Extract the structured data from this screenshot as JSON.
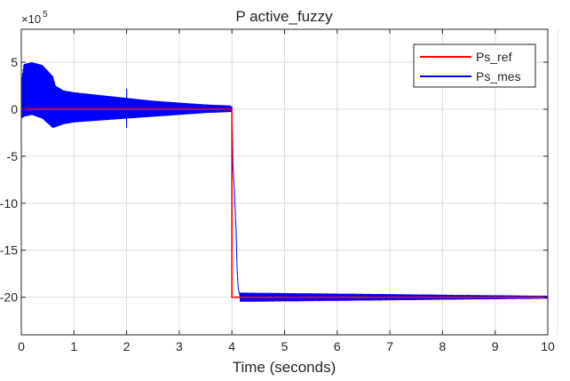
{
  "chart_data": {
    "type": "line",
    "title": "P active_fuzzy",
    "xlabel": "Time (seconds)",
    "ylabel": "",
    "y_exponent_label": "×10",
    "y_exponent_power": "5",
    "xlim": [
      0,
      10
    ],
    "ylim": [
      -24,
      8.5
    ],
    "xticks": [
      0,
      1,
      2,
      3,
      4,
      5,
      6,
      7,
      8,
      9,
      10
    ],
    "xtick_labels": [
      "0",
      "1",
      "2",
      "3",
      "4",
      "5",
      "6",
      "7",
      "8",
      "9",
      "10"
    ],
    "yticks": [
      5,
      0,
      -5,
      -10,
      -15,
      -20
    ],
    "ytick_labels": [
      "5",
      "0",
      "-5",
      "-10",
      "-15",
      "-20"
    ],
    "grid": true,
    "legend_position": "top-right",
    "series": [
      {
        "name": "Ps_ref",
        "color": "#ff0000",
        "x": [
          0,
          4.0,
          4.0,
          10
        ],
        "y": [
          0,
          0,
          -20,
          -20
        ]
      },
      {
        "name": "Ps_mes",
        "color": "#0000ff",
        "envelope": {
          "x": [
            0.0,
            0.05,
            0.2,
            0.4,
            0.6,
            0.65,
            0.8,
            1.0,
            1.5,
            2.0,
            2.5,
            3.0,
            3.5,
            3.95,
            4.0
          ],
          "upper": [
            3.0,
            4.8,
            5.0,
            4.7,
            3.5,
            2.5,
            2.0,
            1.8,
            1.5,
            1.2,
            0.9,
            0.7,
            0.5,
            0.4,
            0.3
          ],
          "lower": [
            -1.0,
            -0.8,
            -0.6,
            -1.0,
            -2.0,
            -1.9,
            -1.6,
            -1.4,
            -1.2,
            -1.0,
            -0.8,
            -0.6,
            -0.4,
            -0.3,
            -0.3
          ]
        },
        "spikes": [
          {
            "x": 2.0,
            "y": [
              -2.0,
              2.2
            ]
          }
        ],
        "transition": {
          "x": [
            4.0,
            4.02,
            4.05,
            4.08,
            4.1,
            4.12,
            4.15
          ],
          "y": [
            0.2,
            -6.0,
            -9.0,
            -13.0,
            -17.0,
            -19.0,
            -19.8
          ]
        },
        "steady": {
          "x_start": 4.15,
          "x_end": 10,
          "mean": -20.0,
          "ripple_start": 0.5,
          "ripple_end": 0.15
        }
      }
    ]
  }
}
